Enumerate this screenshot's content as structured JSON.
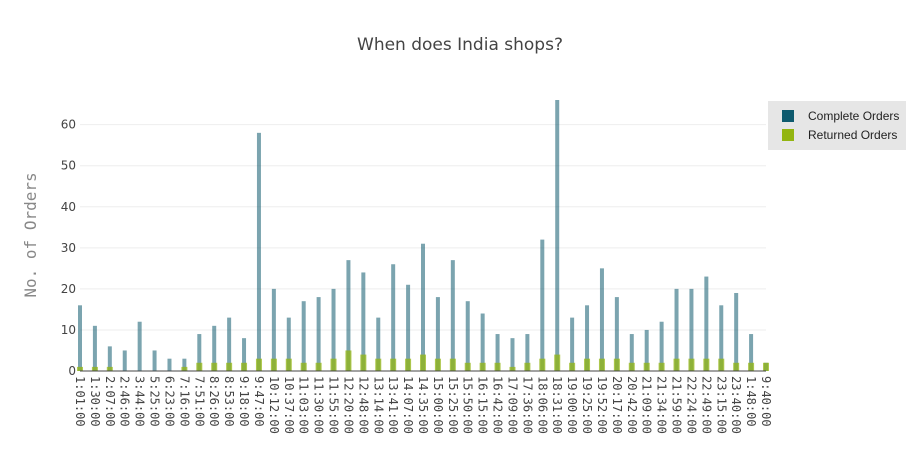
{
  "chart_data": {
    "type": "bar",
    "title": "When does India shops?",
    "xlabel": "",
    "ylabel": "No. of Orders",
    "ylim": [
      0,
      66
    ],
    "yticks": [
      0,
      10,
      20,
      30,
      40,
      50,
      60
    ],
    "x_tick_labels": [
      "1:01:00",
      "1:30:00",
      "2:07:00",
      "2:46:00",
      "3:44:00",
      "5:25:00",
      "6:23:00",
      "7:16:00",
      "7:51:00",
      "8:26:00",
      "8:53:00",
      "9:18:00",
      "9:47:00",
      "10:12:00",
      "10:37:00",
      "11:03:00",
      "11:30:00",
      "11:55:00",
      "12:20:00",
      "12:48:00",
      "13:14:00",
      "13:41:00",
      "14:07:00",
      "14:35:00",
      "15:00:00",
      "15:25:00",
      "15:50:00",
      "16:15:00",
      "16:42:00",
      "17:09:00",
      "17:36:00",
      "18:06:00",
      "18:31:00",
      "19:00:00",
      "19:25:00",
      "19:52:00",
      "20:17:00",
      "20:42:00",
      "21:09:00",
      "21:34:00",
      "21:59:00",
      "22:24:00",
      "22:49:00",
      "23:15:00",
      "23:40:00",
      "1:48:00",
      "9:40:00"
    ],
    "legend_position": "top-right",
    "grid": true,
    "series": [
      {
        "name": "Complete Orders",
        "color": "#0e5a6e",
        "x": [
          "1:01:00",
          "1:30:00",
          "2:07:00",
          "2:46:00",
          "3:44:00",
          "5:25:00",
          "6:23:00",
          "7:16:00",
          "7:51:00",
          "8:26:00",
          "8:53:00",
          "9:18:00",
          "9:47:00",
          "10:12:00",
          "10:37:00",
          "11:03:00",
          "11:30:00",
          "11:55:00",
          "12:20:00",
          "12:48:00",
          "13:14:00",
          "13:41:00",
          "14:07:00",
          "14:35:00",
          "15:00:00",
          "15:25:00",
          "15:50:00",
          "16:15:00",
          "16:42:00",
          "17:09:00",
          "17:36:00",
          "18:06:00",
          "18:31:00",
          "19:00:00",
          "19:25:00",
          "19:52:00",
          "20:17:00",
          "20:42:00",
          "21:09:00",
          "21:34:00",
          "21:59:00",
          "22:24:00",
          "22:49:00",
          "23:15:00",
          "23:40:00",
          "1:48:00",
          "9:40:00"
        ],
        "values": [
          16,
          11,
          6,
          5,
          12,
          5,
          3,
          3,
          9,
          11,
          13,
          8,
          58,
          20,
          13,
          17,
          18,
          20,
          27,
          24,
          13,
          26,
          21,
          31,
          18,
          27,
          17,
          14,
          9,
          8,
          9,
          32,
          66,
          13,
          16,
          25,
          18,
          9,
          10,
          12,
          20,
          20,
          23,
          16,
          19,
          9,
          2
        ]
      },
      {
        "name": "Returned Orders",
        "color": "#93b511",
        "x": [
          "1:01:00",
          "1:30:00",
          "2:07:00",
          "2:46:00",
          "3:44:00",
          "5:25:00",
          "6:23:00",
          "7:16:00",
          "7:51:00",
          "8:26:00",
          "8:53:00",
          "9:18:00",
          "9:47:00",
          "10:12:00",
          "10:37:00",
          "11:03:00",
          "11:30:00",
          "11:55:00",
          "12:20:00",
          "12:48:00",
          "13:14:00",
          "13:41:00",
          "14:07:00",
          "14:35:00",
          "15:00:00",
          "15:25:00",
          "15:50:00",
          "16:15:00",
          "16:42:00",
          "17:09:00",
          "17:36:00",
          "18:06:00",
          "18:31:00",
          "19:00:00",
          "19:25:00",
          "19:52:00",
          "20:17:00",
          "20:42:00",
          "21:09:00",
          "21:34:00",
          "21:59:00",
          "22:24:00",
          "22:49:00",
          "23:15:00",
          "23:40:00",
          "1:48:00",
          "9:40:00"
        ],
        "values": [
          1,
          1,
          1,
          0,
          0,
          0,
          0,
          1,
          2,
          2,
          2,
          2,
          3,
          3,
          3,
          2,
          2,
          3,
          5,
          4,
          3,
          3,
          3,
          4,
          3,
          3,
          2,
          2,
          2,
          1,
          2,
          3,
          4,
          2,
          3,
          3,
          3,
          2,
          2,
          2,
          3,
          3,
          3,
          3,
          2,
          2,
          2
        ]
      }
    ]
  }
}
